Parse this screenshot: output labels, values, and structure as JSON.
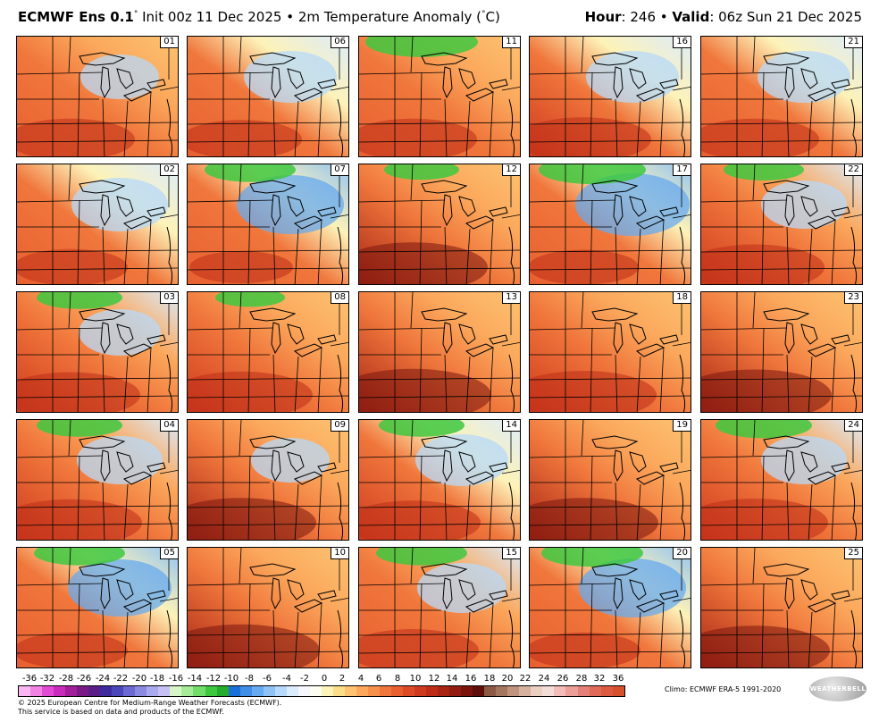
{
  "header": {
    "model": "ECMWF Ens 0.1",
    "degree": "°",
    "init": "Init 00z 11 Dec 2025",
    "separator": "•",
    "field": "2m Temperature Anomaly (",
    "unit_deg": "°",
    "unit_close": "C)",
    "hour_label": "Hour",
    "hour_value": ": 246 • ",
    "valid_label": "Valid",
    "valid_value": ": 06z Sun 21 Dec 2025"
  },
  "panels": [
    {
      "id": "01",
      "warm": 0.55,
      "cool_ne": 0.35,
      "green": 0.0
    },
    {
      "id": "02",
      "warm": 0.35,
      "cool_ne": 0.6,
      "green": 0.0
    },
    {
      "id": "03",
      "warm": 0.7,
      "cool_ne": 0.4,
      "green": 0.3
    },
    {
      "id": "04",
      "warm": 0.75,
      "cool_ne": 0.45,
      "green": 0.3
    },
    {
      "id": "05",
      "warm": 0.35,
      "cool_ne": 0.7,
      "green": 0.35
    },
    {
      "id": "06",
      "warm": 0.45,
      "cool_ne": 0.55,
      "green": 0.0
    },
    {
      "id": "07",
      "warm": 0.2,
      "cool_ne": 0.75,
      "green": 0.35
    },
    {
      "id": "08",
      "warm": 0.75,
      "cool_ne": 0.3,
      "green": 0.15
    },
    {
      "id": "09",
      "warm": 0.85,
      "cool_ne": 0.35,
      "green": 0.0
    },
    {
      "id": "10",
      "warm": 0.95,
      "cool_ne": 0.0,
      "green": 0.0
    },
    {
      "id": "11",
      "warm": 0.55,
      "cool_ne": 0.2,
      "green": 0.55
    },
    {
      "id": "12",
      "warm": 0.85,
      "cool_ne": 0.3,
      "green": 0.2
    },
    {
      "id": "13",
      "warm": 0.95,
      "cool_ne": 0.1,
      "green": 0.0
    },
    {
      "id": "14",
      "warm": 0.65,
      "cool_ne": 0.55,
      "green": 0.3
    },
    {
      "id": "15",
      "warm": 0.6,
      "cool_ne": 0.5,
      "green": 0.35
    },
    {
      "id": "16",
      "warm": 0.65,
      "cool_ne": 0.55,
      "green": 0.0
    },
    {
      "id": "17",
      "warm": 0.3,
      "cool_ne": 0.85,
      "green": 0.5
    },
    {
      "id": "18",
      "warm": 0.8,
      "cool_ne": 0.15,
      "green": 0.0
    },
    {
      "id": "19",
      "warm": 0.85,
      "cool_ne": 0.2,
      "green": 0.0
    },
    {
      "id": "20",
      "warm": 0.35,
      "cool_ne": 0.75,
      "green": 0.45
    },
    {
      "id": "21",
      "warm": 0.55,
      "cool_ne": 0.55,
      "green": 0.0
    },
    {
      "id": "22",
      "warm": 0.7,
      "cool_ne": 0.45,
      "green": 0.25
    },
    {
      "id": "23",
      "warm": 0.9,
      "cool_ne": 0.2,
      "green": 0.0
    },
    {
      "id": "24",
      "warm": 0.8,
      "cool_ne": 0.45,
      "green": 0.4
    },
    {
      "id": "25",
      "warm": 0.85,
      "cool_ne": 0.25,
      "green": 0.0
    }
  ],
  "colorbar": {
    "labels": [
      "-36",
      "-32",
      "-28",
      "-26",
      "-24",
      "-22",
      "-20",
      "-18",
      "-16",
      "-14",
      "-12",
      "-10",
      "-8",
      "-6",
      "-4",
      "-2",
      "0",
      "2",
      "4",
      "6",
      "8",
      "10",
      "12",
      "14",
      "16",
      "18",
      "20",
      "22",
      "24",
      "26",
      "28",
      "32",
      "36"
    ],
    "colors": [
      "#f9b6f0",
      "#f283e5",
      "#e24bd4",
      "#c92bbd",
      "#a11f9a",
      "#7a1a86",
      "#5a1e88",
      "#3e2c9e",
      "#4a48b8",
      "#6a6ad0",
      "#8a8ae0",
      "#a9a9ee",
      "#c6c0f5",
      "#d8f5c8",
      "#a6ec98",
      "#72dd6a",
      "#3ec840",
      "#25ac2c",
      "#1b6fd8",
      "#3f8fe6",
      "#67aaef",
      "#8fc3f5",
      "#b7d9fa",
      "#dbecfc",
      "#f5f9fe",
      "#fdfdf3",
      "#fdf2b8",
      "#fddc8a",
      "#fdc372",
      "#fba85c",
      "#f6904a",
      "#f0773c",
      "#e85f30",
      "#dd4a26",
      "#cf3a1e",
      "#bd2d18",
      "#a82414",
      "#911c11",
      "#7a150e",
      "#5f0f0b",
      "#8a5a45",
      "#a5765f",
      "#bf937d",
      "#d6b1a0",
      "#eacfc3",
      "#f3ddd8",
      "#f2bcb8",
      "#ec9e98",
      "#e58078",
      "#e06a58",
      "#db5a40",
      "#d7502e"
    ]
  },
  "footer": {
    "line1": "© 2025 European Centre for Medium-Range Weather Forecasts (ECMWF).",
    "line2": "This service is based on data and products of the ECMWF."
  },
  "climo": "Climo: ECMWF ERA-5 1991-2020",
  "logo_text": "WEATHERBELL"
}
